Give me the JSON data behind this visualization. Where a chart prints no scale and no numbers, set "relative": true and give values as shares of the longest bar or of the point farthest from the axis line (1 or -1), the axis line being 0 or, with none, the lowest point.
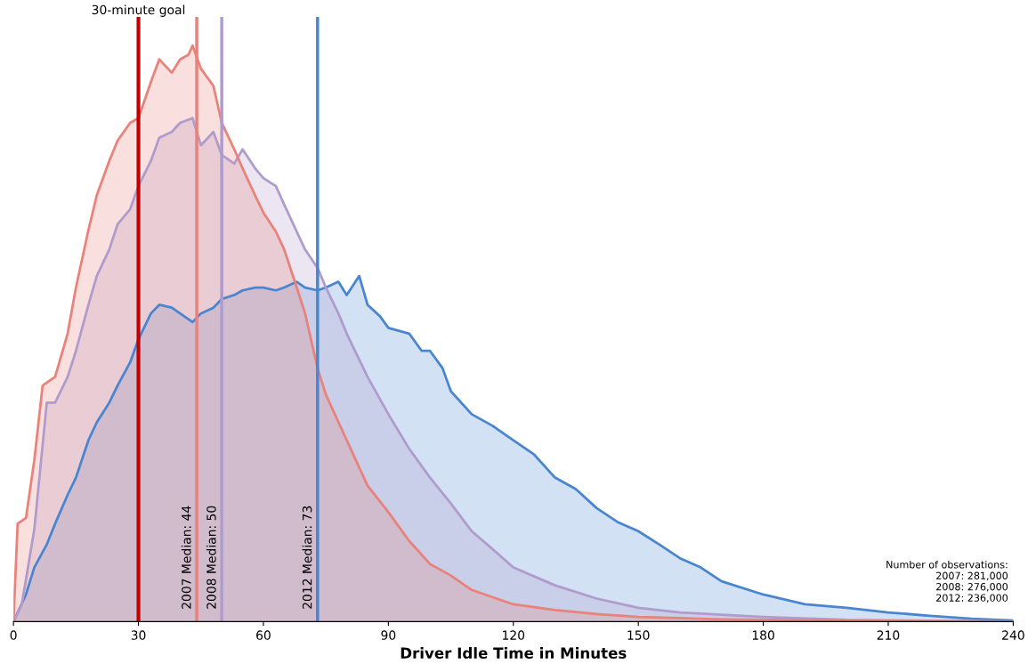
{
  "chart_data": {
    "type": "area",
    "relative": true,
    "xlabel": "Driver Idle Time in Minutes",
    "xlim": [
      0,
      240
    ],
    "xticks": [
      0,
      30,
      60,
      90,
      120,
      150,
      180,
      210,
      240
    ],
    "grid": false,
    "legend": false,
    "series": [
      {
        "color": "#4a86d0",
        "x": [
          0,
          3,
          5,
          8,
          10,
          13,
          15,
          18,
          20,
          23,
          25,
          28,
          30,
          33,
          35,
          38,
          40,
          43,
          45,
          48,
          50,
          53,
          55,
          58,
          60,
          63,
          65,
          68,
          70,
          73,
          75,
          78,
          80,
          83,
          85,
          88,
          90,
          95,
          98,
          100,
          103,
          105,
          110,
          115,
          120,
          125,
          130,
          135,
          140,
          145,
          150,
          155,
          160,
          165,
          170,
          180,
          190,
          200,
          210,
          220,
          230,
          240
        ],
        "values": [
          0,
          0.047,
          0.094,
          0.134,
          0.17,
          0.22,
          0.25,
          0.315,
          0.346,
          0.38,
          0.41,
          0.45,
          0.49,
          0.535,
          0.55,
          0.545,
          0.535,
          0.52,
          0.535,
          0.545,
          0.56,
          0.567,
          0.575,
          0.58,
          0.58,
          0.575,
          0.58,
          0.59,
          0.58,
          0.575,
          0.58,
          0.59,
          0.567,
          0.6,
          0.55,
          0.53,
          0.51,
          0.5,
          0.47,
          0.47,
          0.44,
          0.4,
          0.36,
          0.34,
          0.315,
          0.29,
          0.25,
          0.23,
          0.197,
          0.173,
          0.157,
          0.134,
          0.11,
          0.094,
          0.07,
          0.047,
          0.03,
          0.024,
          0.016,
          0.01,
          0.005,
          0.002
        ]
      },
      {
        "color": "#b09ccc",
        "x": [
          0,
          2,
          5,
          8,
          10,
          13,
          15,
          18,
          20,
          23,
          25,
          28,
          30,
          33,
          35,
          38,
          40,
          43,
          45,
          48,
          50,
          53,
          55,
          58,
          60,
          63,
          65,
          68,
          70,
          73,
          75,
          78,
          80,
          85,
          90,
          95,
          100,
          105,
          110,
          115,
          120,
          130,
          140,
          150,
          160,
          180,
          200,
          240
        ],
        "values": [
          0,
          0.03,
          0.16,
          0.38,
          0.38,
          0.425,
          0.47,
          0.55,
          0.6,
          0.646,
          0.69,
          0.716,
          0.756,
          0.8,
          0.84,
          0.85,
          0.866,
          0.874,
          0.827,
          0.85,
          0.81,
          0.795,
          0.82,
          0.787,
          0.77,
          0.756,
          0.724,
          0.677,
          0.646,
          0.614,
          0.58,
          0.535,
          0.5,
          0.425,
          0.36,
          0.3,
          0.25,
          0.205,
          0.157,
          0.126,
          0.094,
          0.063,
          0.04,
          0.024,
          0.016,
          0.008,
          0.003,
          0
        ]
      },
      {
        "color": "#e8827a",
        "x": [
          0,
          1,
          3,
          5,
          7,
          10,
          13,
          15,
          18,
          20,
          23,
          25,
          28,
          30,
          33,
          35,
          38,
          40,
          42,
          43,
          45,
          48,
          50,
          53,
          55,
          58,
          60,
          63,
          65,
          68,
          70,
          73,
          75,
          80,
          85,
          90,
          95,
          100,
          105,
          110,
          120,
          130,
          140,
          150,
          170,
          200,
          240
        ],
        "values": [
          0,
          0.17,
          0.18,
          0.28,
          0.41,
          0.425,
          0.5,
          0.58,
          0.68,
          0.74,
          0.8,
          0.835,
          0.866,
          0.874,
          0.937,
          0.976,
          0.953,
          0.976,
          0.984,
          1,
          0.96,
          0.93,
          0.866,
          0.82,
          0.787,
          0.74,
          0.71,
          0.677,
          0.646,
          0.58,
          0.535,
          0.44,
          0.394,
          0.315,
          0.236,
          0.19,
          0.14,
          0.1,
          0.08,
          0.055,
          0.03,
          0.02,
          0.013,
          0.008,
          0.004,
          0.002,
          0
        ]
      }
    ],
    "ref_lines": [
      {
        "axis": "x",
        "value": 30,
        "label": "30-minute goal",
        "color": "#c00000"
      },
      {
        "axis": "x",
        "value": 44,
        "label": "2007 Median: 44",
        "color": "#e8827a"
      },
      {
        "axis": "x",
        "value": 50,
        "label": "2008 Median: 50",
        "color": "#b09ccc"
      },
      {
        "axis": "x",
        "value": 73,
        "label": "2012 Median: 73",
        "color": "#4a86d0"
      }
    ],
    "annotations": [
      "Number of observations:\n2007: 281,000\n2008: 276,000\n2012: 236,000"
    ]
  }
}
